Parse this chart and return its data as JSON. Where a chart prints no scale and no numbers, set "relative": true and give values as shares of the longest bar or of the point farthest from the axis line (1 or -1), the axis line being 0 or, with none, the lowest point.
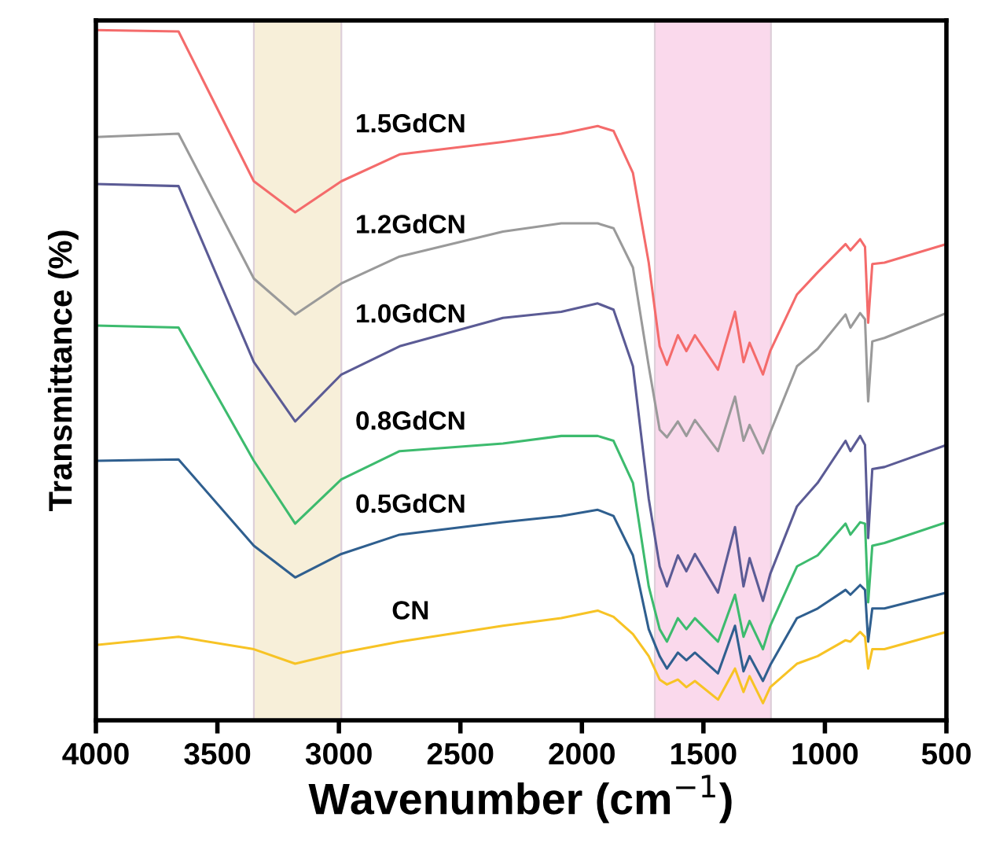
{
  "chart_data": {
    "type": "line",
    "relative": true,
    "xlabel": "Wavenumber (cm$^{−1}$)",
    "ylabel": "Transmittance (%)",
    "x": [
      4000,
      3660,
      3350,
      3180,
      2990,
      2750,
      2325,
      2085,
      1935,
      1870,
      1790,
      1725,
      1680,
      1650,
      1605,
      1570,
      1535,
      1440,
      1370,
      1335,
      1310,
      1255,
      1225,
      1115,
      1030,
      915,
      895,
      855,
      835,
      822,
      805,
      755,
      500
    ],
    "xlim": [
      4000,
      500
    ],
    "xticks": [
      4000,
      3500,
      3000,
      2500,
      2000,
      1500,
      1000,
      500
    ],
    "grid": false,
    "legend": false,
    "series": [
      {
        "name": "1.5GdCN",
        "color": "#f46b6b",
        "values": [
          1.0,
          0.998,
          0.781,
          0.736,
          0.781,
          0.82,
          0.838,
          0.85,
          0.861,
          0.854,
          0.793,
          0.663,
          0.542,
          0.515,
          0.558,
          0.535,
          0.558,
          0.508,
          0.592,
          0.519,
          0.547,
          0.501,
          0.535,
          0.617,
          0.649,
          0.69,
          0.681,
          0.697,
          0.686,
          0.576,
          0.661,
          0.663,
          0.69
        ]
      },
      {
        "name": "1.2GdCN",
        "color": "#9a9a9a",
        "values": [
          0.845,
          0.85,
          0.64,
          0.588,
          0.633,
          0.672,
          0.708,
          0.72,
          0.72,
          0.713,
          0.656,
          0.513,
          0.421,
          0.41,
          0.433,
          0.412,
          0.435,
          0.39,
          0.469,
          0.405,
          0.428,
          0.387,
          0.417,
          0.513,
          0.538,
          0.588,
          0.569,
          0.59,
          0.581,
          0.462,
          0.549,
          0.554,
          0.59
        ]
      },
      {
        "name": "1.0GdCN",
        "color": "#5b5b95",
        "values": [
          0.777,
          0.774,
          0.519,
          0.433,
          0.501,
          0.542,
          0.583,
          0.592,
          0.604,
          0.595,
          0.513,
          0.321,
          0.223,
          0.194,
          0.239,
          0.216,
          0.241,
          0.185,
          0.28,
          0.194,
          0.235,
          0.173,
          0.212,
          0.31,
          0.344,
          0.405,
          0.39,
          0.412,
          0.399,
          0.264,
          0.364,
          0.367,
          0.399
        ]
      },
      {
        "name": "0.8GdCN",
        "color": "#3dbb6e",
        "values": [
          0.572,
          0.569,
          0.376,
          0.285,
          0.349,
          0.39,
          0.401,
          0.412,
          0.412,
          0.405,
          0.344,
          0.194,
          0.132,
          0.114,
          0.148,
          0.132,
          0.148,
          0.114,
          0.182,
          0.121,
          0.144,
          0.103,
          0.137,
          0.223,
          0.239,
          0.285,
          0.269,
          0.287,
          0.285,
          0.171,
          0.253,
          0.257,
          0.287
        ]
      },
      {
        "name": "0.5GdCN",
        "color": "#2f5f8f",
        "values": [
          0.376,
          0.378,
          0.253,
          0.207,
          0.241,
          0.269,
          0.287,
          0.296,
          0.305,
          0.296,
          0.239,
          0.132,
          0.093,
          0.075,
          0.098,
          0.087,
          0.098,
          0.068,
          0.137,
          0.071,
          0.093,
          0.057,
          0.08,
          0.148,
          0.162,
          0.189,
          0.182,
          0.196,
          0.189,
          0.114,
          0.162,
          0.162,
          0.185
        ]
      },
      {
        "name": "CN",
        "color": "#f7c325",
        "values": [
          0.109,
          0.121,
          0.103,
          0.082,
          0.098,
          0.114,
          0.137,
          0.148,
          0.159,
          0.15,
          0.125,
          0.093,
          0.059,
          0.052,
          0.059,
          0.048,
          0.057,
          0.03,
          0.075,
          0.041,
          0.064,
          0.025,
          0.048,
          0.082,
          0.093,
          0.116,
          0.114,
          0.128,
          0.121,
          0.075,
          0.103,
          0.103,
          0.128
        ]
      }
    ],
    "bands": [
      {
        "axis": "x",
        "from": 3350,
        "to": 2990,
        "color": "#f3e6c0"
      },
      {
        "axis": "x",
        "from": 1700,
        "to": 1222,
        "color": "#f8c0e0"
      }
    ]
  }
}
